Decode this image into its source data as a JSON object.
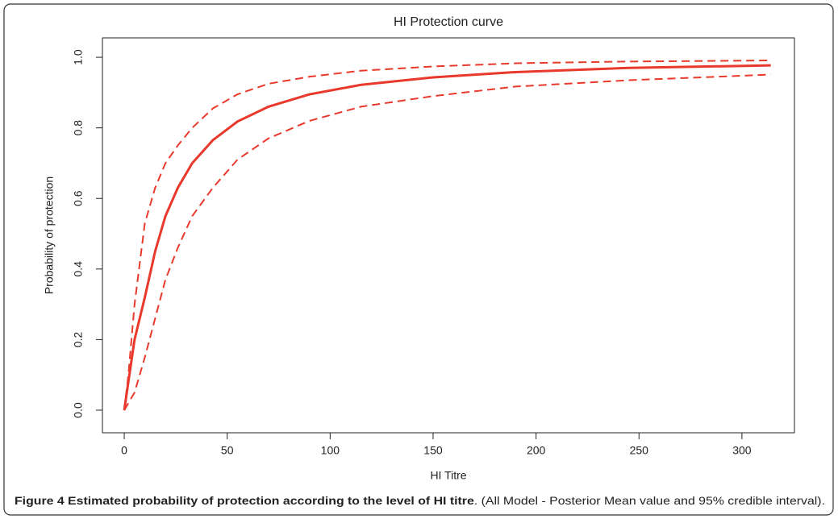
{
  "chart_data": {
    "type": "line",
    "title": "HI Protection curve",
    "x_label": "HI Titre",
    "y_label": "Probability of protection",
    "xlim": [
      -10.6,
      325.5
    ],
    "ylim": [
      -0.064,
      1.055
    ],
    "xticks": [
      0,
      50,
      100,
      150,
      200,
      250,
      300
    ],
    "yticks": [
      {
        "value": 0,
        "label": "0.0"
      },
      0.2,
      0.4,
      0.6,
      0.8,
      {
        "value": 1,
        "label": "1.0"
      }
    ],
    "series": [
      {
        "color": "#e8392c",
        "line_style": "solid",
        "x": [
          0,
          5,
          10,
          15,
          20,
          26,
          33,
          43,
          55,
          70,
          90,
          115,
          150,
          190,
          245,
          314
        ],
        "values": [
          0,
          0.2,
          0.32,
          0.45,
          0.55,
          0.63,
          0.7,
          0.765,
          0.818,
          0.86,
          0.895,
          0.922,
          0.943,
          0.958,
          0.97,
          0.977
        ]
      },
      {
        "color": "#e8392c",
        "line_style": "dashed",
        "x": [
          0,
          2,
          5,
          10,
          15,
          20,
          26,
          33,
          43,
          55,
          70,
          90,
          115,
          150,
          190,
          245,
          314
        ],
        "values": [
          0,
          0.1,
          0.3,
          0.53,
          0.63,
          0.7,
          0.75,
          0.8,
          0.855,
          0.895,
          0.925,
          0.945,
          0.962,
          0.974,
          0.983,
          0.988,
          0.991
        ]
      },
      {
        "color": "#e8392c",
        "line_style": "dashed",
        "x": [
          0,
          5,
          10,
          15,
          20,
          26,
          33,
          43,
          55,
          70,
          90,
          115,
          150,
          190,
          245,
          314
        ],
        "values": [
          0,
          0.05,
          0.15,
          0.26,
          0.37,
          0.46,
          0.55,
          0.63,
          0.71,
          0.77,
          0.82,
          0.86,
          0.89,
          0.917,
          0.935,
          0.951
        ]
      }
    ],
    "caption": {
      "label": "Figure 4 Estimated probability of protection according to the level of HI titre",
      "text": ". (All Model - Posterior Mean value and 95% credible interval)."
    }
  }
}
